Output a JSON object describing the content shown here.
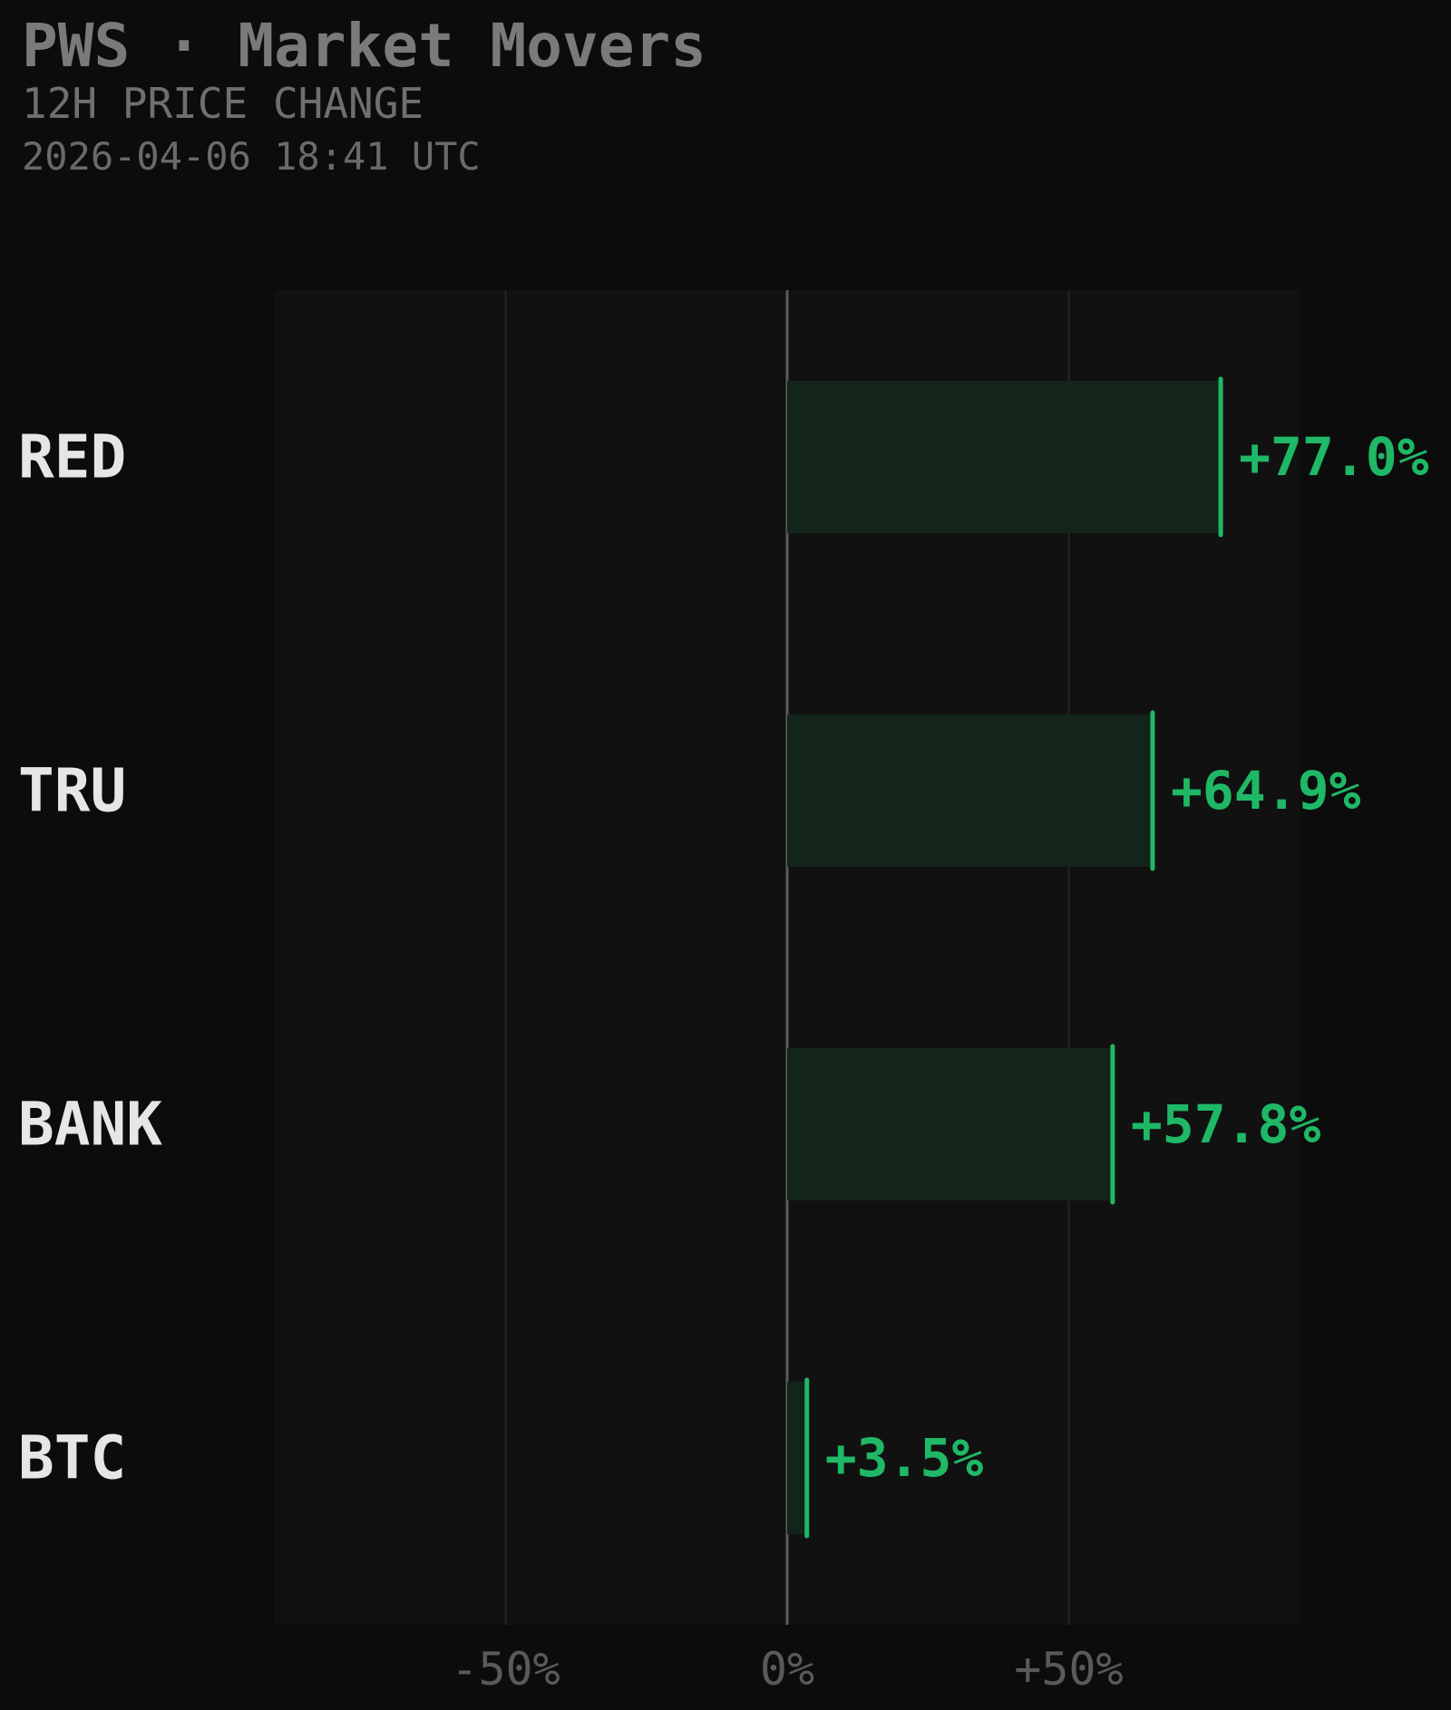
{
  "header": {
    "title": "PWS · Market Movers",
    "subtitle": "12H PRICE CHANGE",
    "timestamp": "2026-04-06 18:41 UTC"
  },
  "colors": {
    "background": "#0c0c0c",
    "plot_area": "#111111",
    "positive": "#1fb866",
    "bar_fill": "#13251b",
    "category_text": "#e6e6e6",
    "tick_text": "#5a5a5a",
    "header_text": "#7a7a7a"
  },
  "chart_data": {
    "type": "bar",
    "orientation": "horizontal",
    "categories": [
      "RED",
      "TRU",
      "BANK",
      "BTC"
    ],
    "values": [
      77.0,
      64.9,
      57.8,
      3.5
    ],
    "value_labels": [
      "+77.0%",
      "+64.9%",
      "+57.8%",
      "+3.5%"
    ],
    "xlim": [
      -91,
      91
    ],
    "xticks": [
      -50,
      0,
      50
    ],
    "xtick_labels": [
      "-50%",
      "0%",
      "+50%"
    ],
    "grid": true
  }
}
